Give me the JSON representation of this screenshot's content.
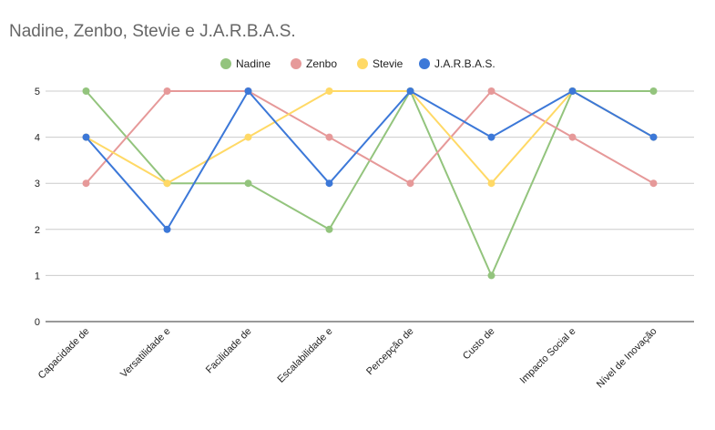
{
  "chart_data": {
    "type": "line",
    "title": "Nadine, Zenbo, Stevie e J.A.R.B.A.S.",
    "categories": [
      "Capacidade de",
      "Versatilidade e",
      "Facilidade de",
      "Escalabilidade e",
      "Percepção de",
      "Custo de",
      "Impacto Social e",
      "Nível de Inovação"
    ],
    "series": [
      {
        "name": "Nadine",
        "color": "#93c47d",
        "values": [
          5,
          3,
          3,
          2,
          5,
          1,
          5,
          5
        ]
      },
      {
        "name": "Zenbo",
        "color": "#e69999",
        "values": [
          3,
          5,
          5,
          4,
          3,
          5,
          4,
          3
        ]
      },
      {
        "name": "Stevie",
        "color": "#ffd966",
        "values": [
          4,
          3,
          4,
          5,
          5,
          3,
          5,
          4
        ]
      },
      {
        "name": "J.A.R.B.A.S.",
        "color": "#3c78d8",
        "values": [
          4,
          2,
          5,
          3,
          5,
          4,
          5,
          4
        ]
      }
    ],
    "yticks": [
      "0",
      "1",
      "2",
      "3",
      "4",
      "5"
    ],
    "ylim": [
      0,
      5
    ],
    "grid": true,
    "legend_position": "top"
  }
}
